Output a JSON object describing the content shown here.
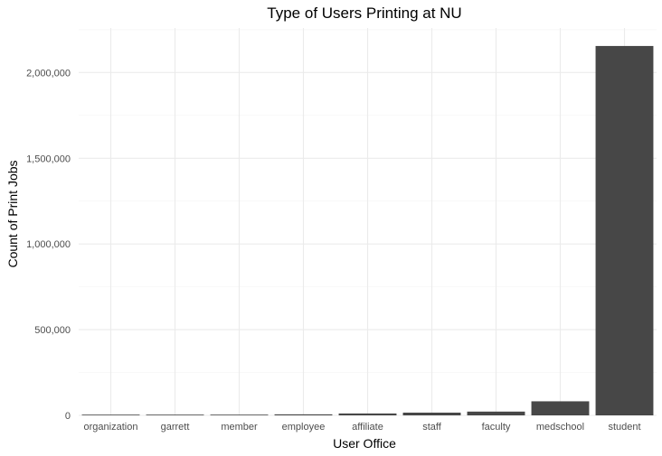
{
  "chart_data": {
    "type": "bar",
    "title": "Type of Users Printing at NU",
    "xlabel": "User Office",
    "ylabel": "Count of Print Jobs",
    "categories": [
      "organization",
      "garrett",
      "member",
      "employee",
      "affiliate",
      "staff",
      "faculty",
      "medschool",
      "student"
    ],
    "values": [
      200,
      1500,
      3500,
      6000,
      11000,
      16000,
      22000,
      82000,
      2155000
    ],
    "ylim": [
      0,
      2260000
    ],
    "yticks": [
      0,
      500000,
      1000000,
      1500000,
      2000000
    ],
    "ytick_labels": [
      "0",
      "500,000",
      "1,000,000",
      "1,500,000",
      "2,000,000"
    ],
    "bar_color": "#474747",
    "grid": true,
    "legend": "none"
  }
}
